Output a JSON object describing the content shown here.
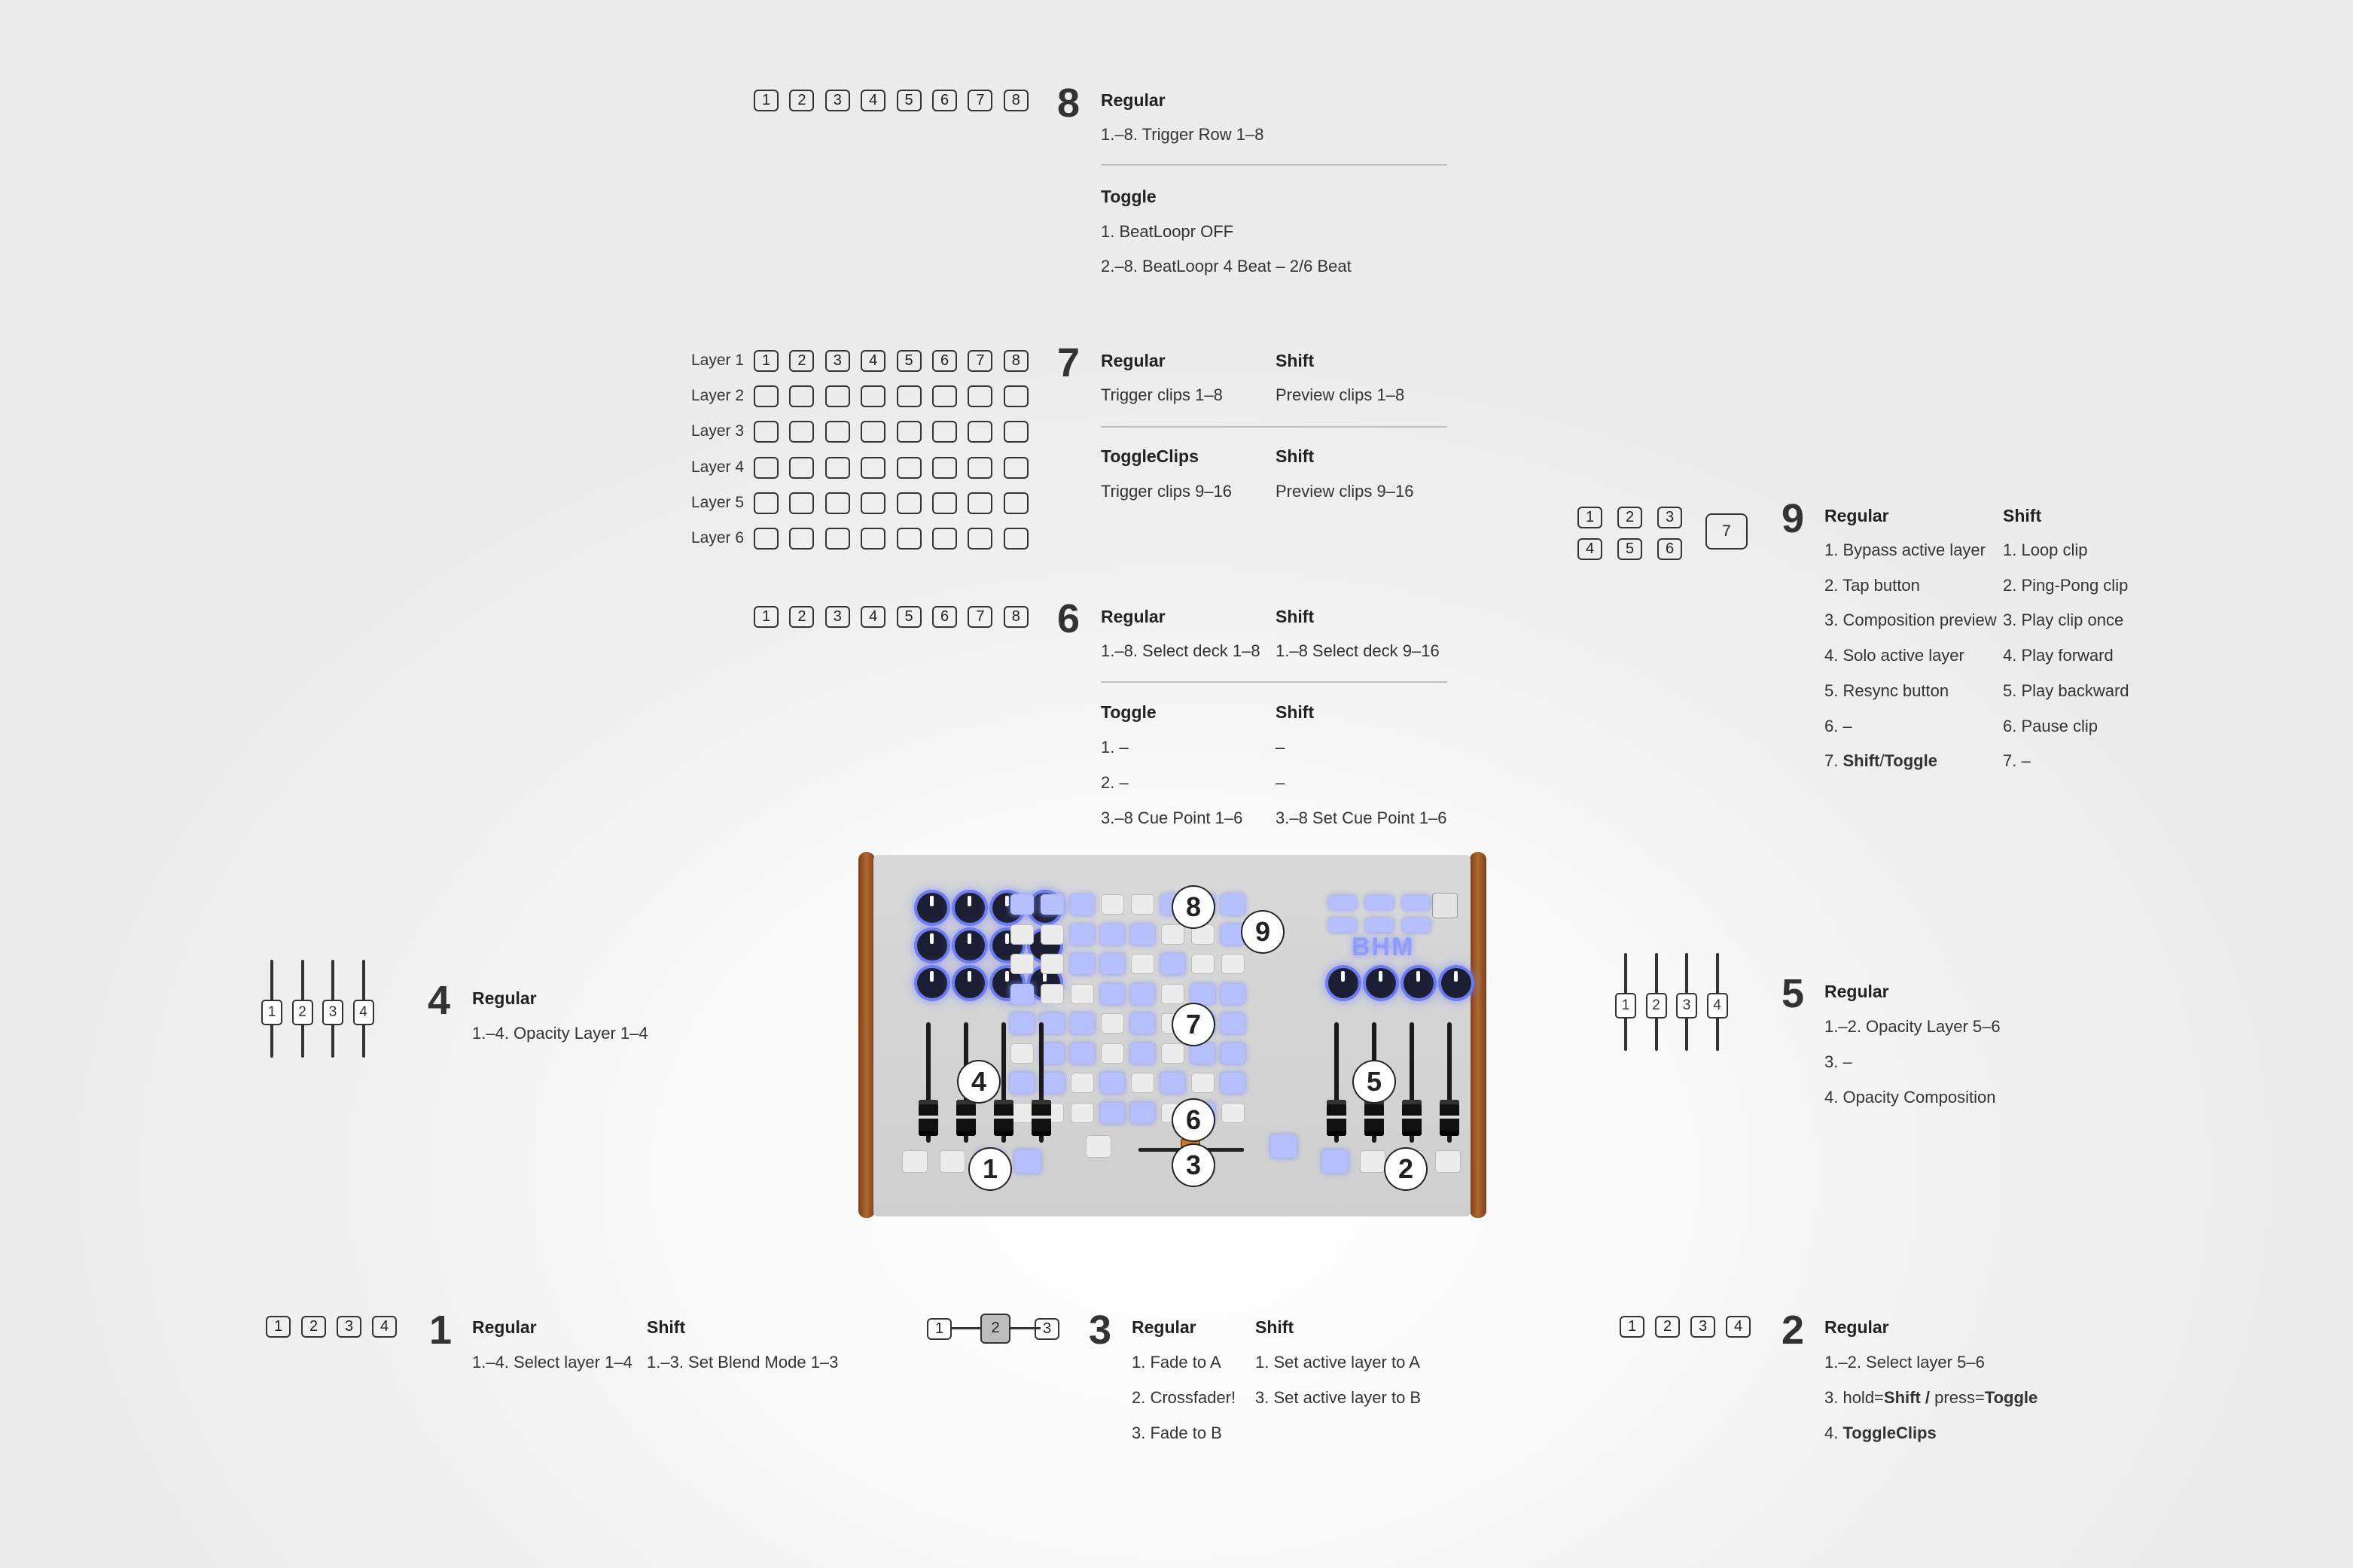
{
  "sections": {
    "s8": {
      "number": "8",
      "keys": [
        "1",
        "2",
        "3",
        "4",
        "5",
        "6",
        "7",
        "8"
      ],
      "regular_head": "Regular",
      "regular_lines": [
        "1.–8. Trigger Row 1–8"
      ],
      "toggle_head": "Toggle",
      "toggle_lines": [
        "1. BeatLoopr OFF",
        "2.–8. BeatLoopr 4 Beat – 2/6 Beat"
      ]
    },
    "s7": {
      "number": "7",
      "row_labels": [
        "Layer 1",
        "Layer 2",
        "Layer 3",
        "Layer 4",
        "Layer 5",
        "Layer 6"
      ],
      "keys": [
        "1",
        "2",
        "3",
        "4",
        "5",
        "6",
        "7",
        "8"
      ],
      "regular_head": "Regular",
      "shift_head": "Shift",
      "regular_line": "Trigger clips 1–8",
      "shift_line": "Preview clips 1–8",
      "toggleclips_head": "ToggleClips",
      "shift2_head": "Shift",
      "toggleclips_line": "Trigger clips 9–16",
      "shift2_line": "Preview clips 9–16"
    },
    "s6": {
      "number": "6",
      "keys": [
        "1",
        "2",
        "3",
        "4",
        "5",
        "6",
        "7",
        "8"
      ],
      "regular_head": "Regular",
      "shift_head": "Shift",
      "regular_line": "1.–8. Select deck 1–8",
      "shift_line": "1.–8 Select deck 9–16",
      "toggle_head": "Toggle",
      "shift2_head": "Shift",
      "toggle_lines": [
        "1. –",
        "2. –",
        "3.–8 Cue Point 1–6"
      ],
      "shift2_lines": [
        "–",
        "–",
        "3.–8 Set Cue Point 1–6"
      ]
    },
    "s9": {
      "number": "9",
      "keys_top": [
        "1",
        "2",
        "3"
      ],
      "keys_bottom": [
        "4",
        "5",
        "6"
      ],
      "key_big": "7",
      "regular_head": "Regular",
      "shift_head": "Shift",
      "regular_lines": [
        "1. Bypass active layer",
        "2. Tap button",
        "3. Composition preview",
        "4. Solo active layer",
        "5. Resync button",
        "6. –"
      ],
      "regular_last_prefix": "7. ",
      "regular_last_bold": "Shift",
      "regular_last_mid": "/",
      "regular_last_bold2": "Toggle",
      "shift_lines": [
        "1. Loop clip",
        "2. Ping-Pong clip",
        "3. Play clip once",
        "4. Play forward",
        "5. Play backward",
        "6. Pause clip",
        "7. –"
      ]
    },
    "s4": {
      "number": "4",
      "faders": [
        "1",
        "2",
        "3",
        "4"
      ],
      "regular_head": "Regular",
      "regular_lines": [
        "1.–4. Opacity Layer 1–4"
      ]
    },
    "s5": {
      "number": "5",
      "faders": [
        "1",
        "2",
        "3",
        "4"
      ],
      "regular_head": "Regular",
      "regular_lines": [
        "1.–2. Opacity Layer 5–6",
        "3. –",
        "4. Opacity Composition"
      ]
    },
    "s1": {
      "number": "1",
      "keys": [
        "1",
        "2",
        "3",
        "4"
      ],
      "regular_head": "Regular",
      "shift_head": "Shift",
      "regular_line": "1.–4. Select layer 1–4",
      "shift_line": "1.–3. Set Blend Mode 1–3"
    },
    "s3": {
      "number": "3",
      "keys": [
        "1",
        "2",
        "3"
      ],
      "regular_head": "Regular",
      "shift_head": "Shift",
      "regular_lines": [
        "1. Fade to A",
        "2. Crossfader!",
        "3. Fade to B"
      ],
      "shift_lines": [
        "1. Set active layer to A",
        "3. Set active layer to B"
      ]
    },
    "s2": {
      "number": "2",
      "keys": [
        "1",
        "2",
        "3",
        "4"
      ],
      "regular_head": "Regular",
      "line1": "1.–2. Select layer 5–6",
      "line2_a": "3. hold=",
      "line2_b": "Shift",
      "line2_c": " / ",
      "line2_d": "press=",
      "line2_e": "Toggle",
      "line3_a": "4. ",
      "line3_b": "ToggleClips"
    }
  },
  "device": {
    "logo": "BHM",
    "callouts": [
      "8",
      "9",
      "7",
      "4",
      "5",
      "6",
      "3",
      "1",
      "2"
    ],
    "colors": {
      "led": "#b6c0ff",
      "knob_ring": "#6f7cf0",
      "wood": "#9a5426"
    }
  }
}
